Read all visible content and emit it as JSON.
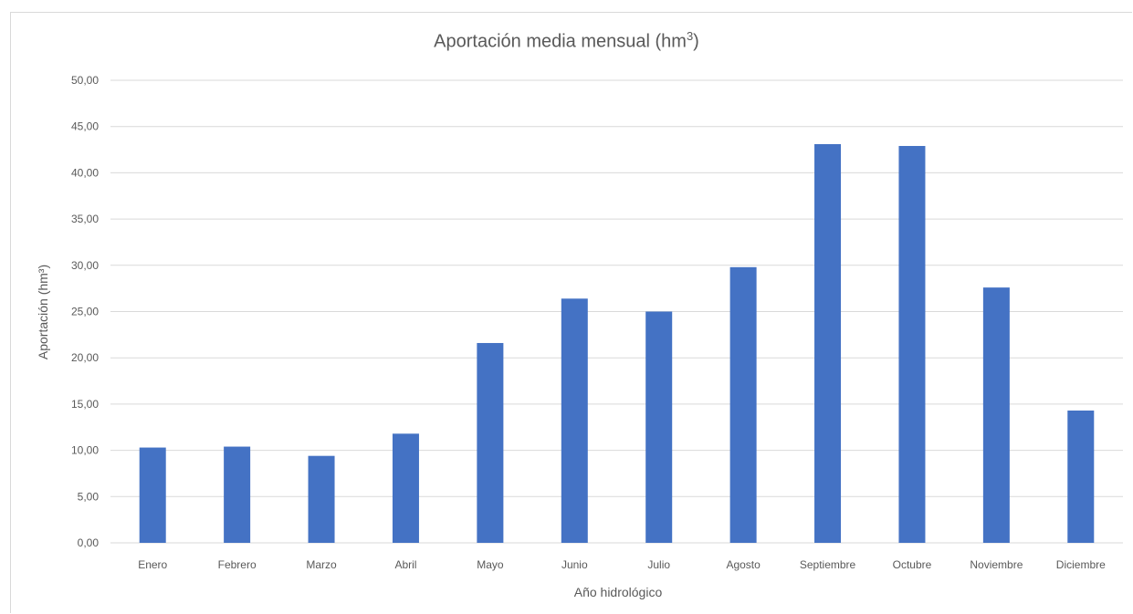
{
  "chart_data": {
    "type": "bar",
    "title": "Aportación media mensual (hm",
    "title_sup": "3",
    "title_suffix": ")",
    "xlabel": "Año hidrológico",
    "ylabel": "Aportación (hm³)",
    "categories": [
      "Enero",
      "Febrero",
      "Marzo",
      "Abril",
      "Mayo",
      "Junio",
      "Julio",
      "Agosto",
      "Septiembre",
      "Octubre",
      "Noviembre",
      "Diciembre"
    ],
    "values": [
      10.3,
      10.4,
      9.4,
      11.8,
      21.6,
      26.4,
      25.0,
      29.8,
      43.1,
      42.9,
      27.6,
      14.3
    ],
    "ylim": [
      0,
      50
    ],
    "yticks": [
      "0,00",
      "5,00",
      "10,00",
      "15,00",
      "20,00",
      "25,00",
      "30,00",
      "35,00",
      "40,00",
      "45,00",
      "50,00"
    ],
    "grid": true,
    "legend": "none",
    "bar_color": "#4472c4",
    "grid_color": "#d9d9d9",
    "text_color": "#595959"
  }
}
